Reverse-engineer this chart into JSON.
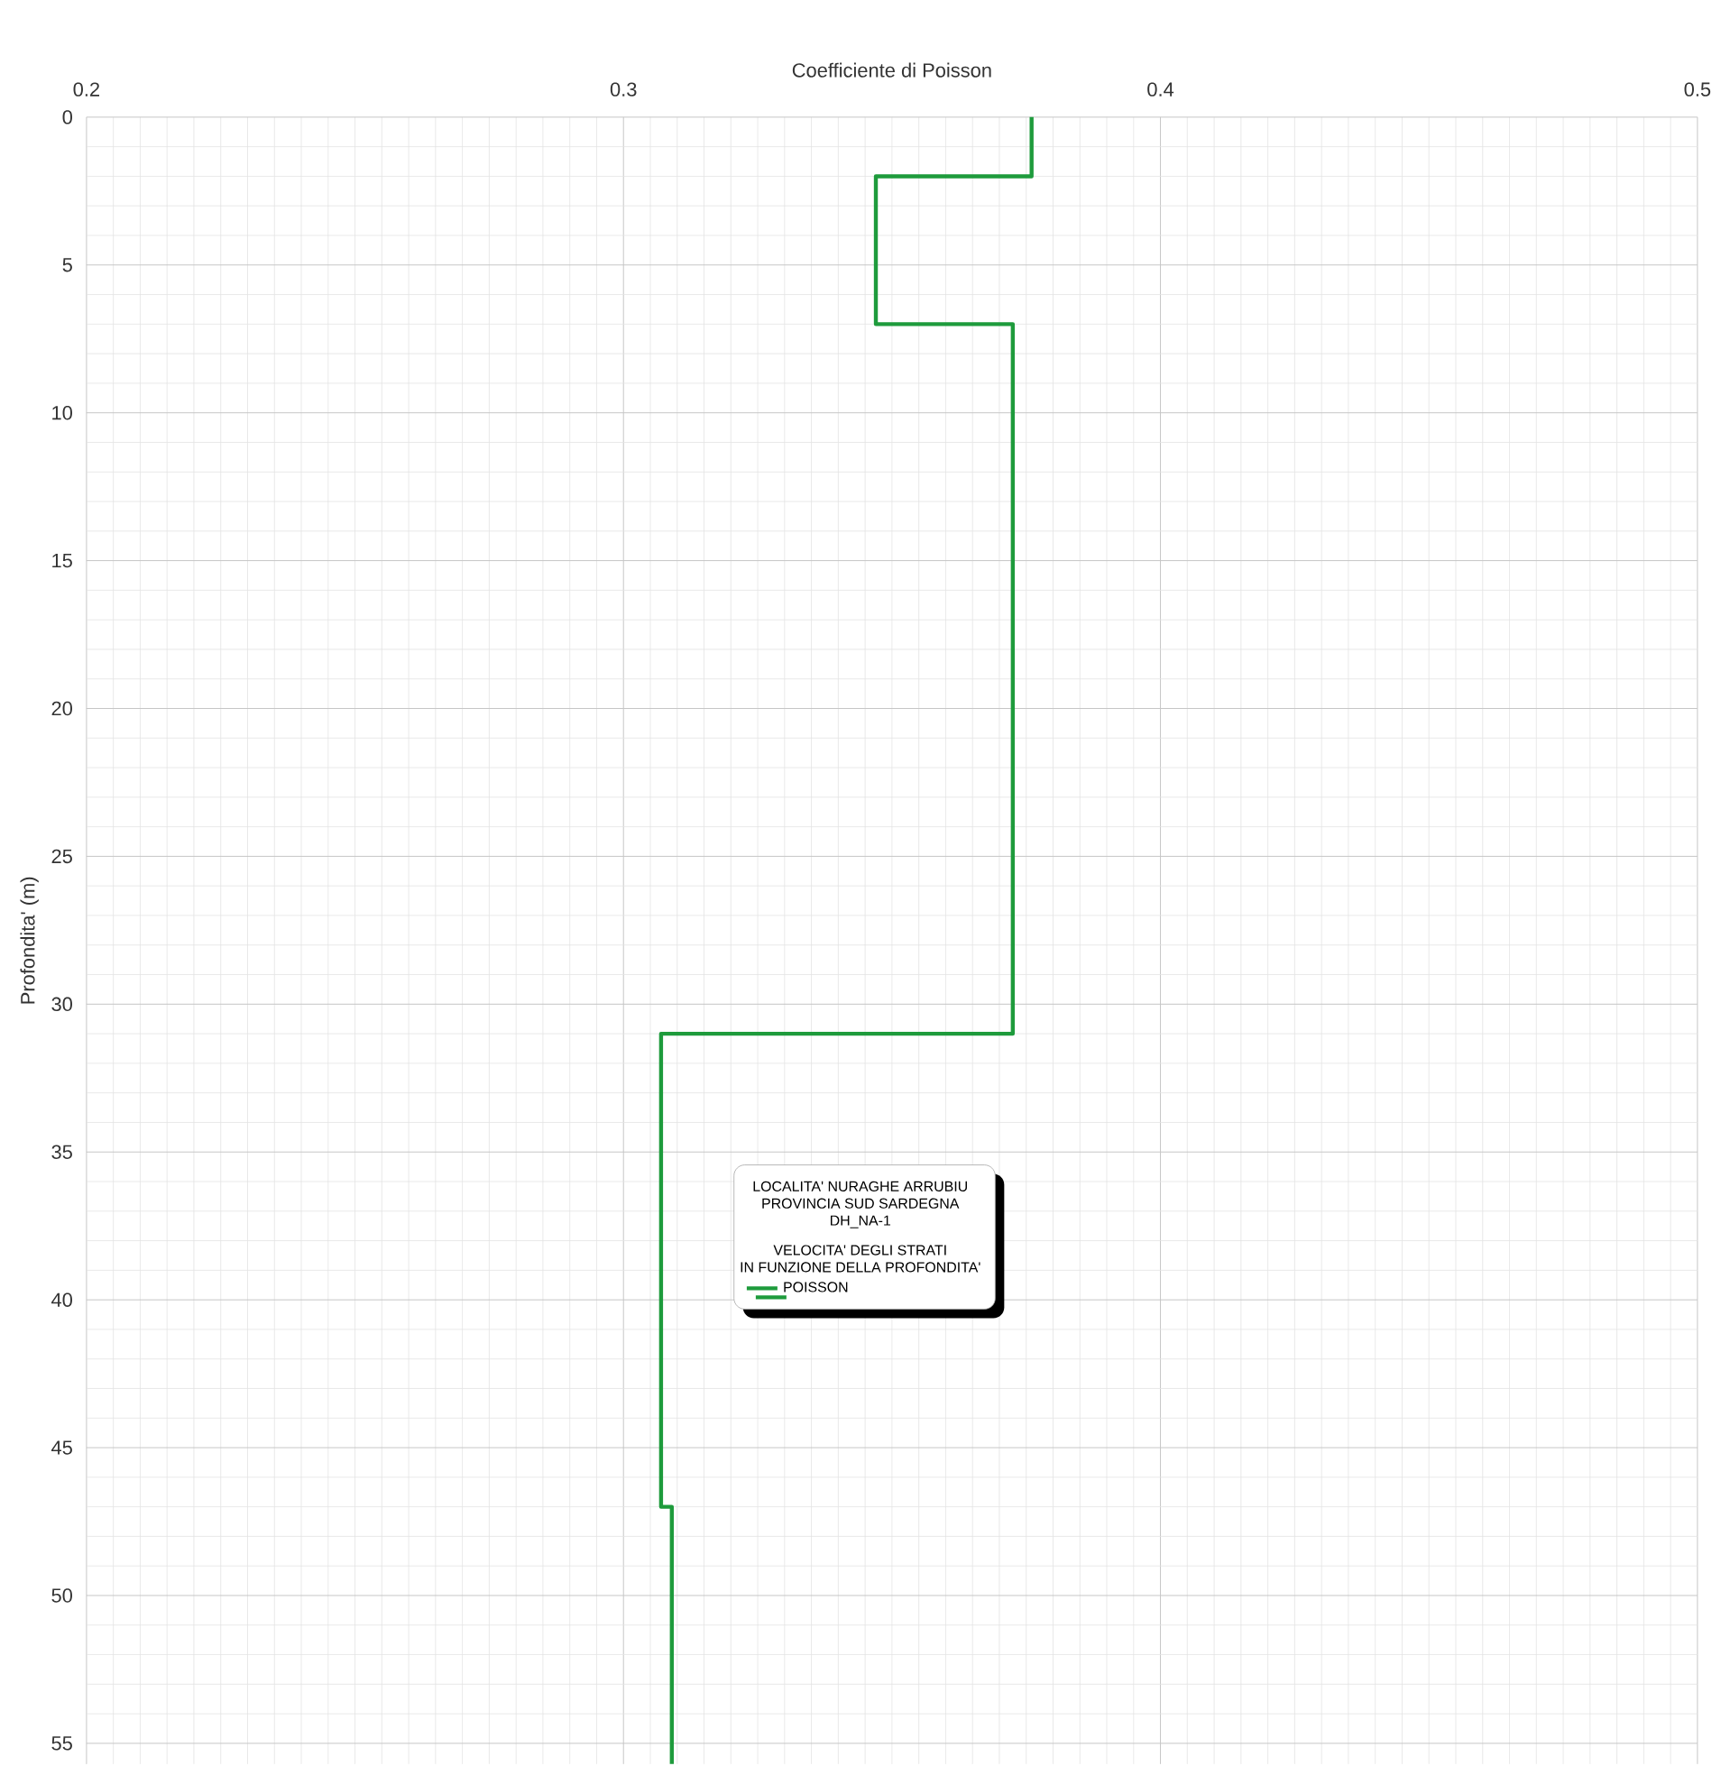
{
  "chart_data": {
    "type": "line",
    "xlabel": "Coefficiente di Poisson",
    "ylabel": "Profondita' (m)",
    "annotations": [
      "LOCALITA' NURAGHE ARRUBIU",
      "PROVINCIA SUD SARDEGNA",
      "DH_NA-1",
      "VELOCITA' DEGLI STRATI",
      "IN FUNZIONE DELLA PROFONDITA'"
    ],
    "series": [
      {
        "name": "POISSON",
        "color": "#1e9b3c",
        "x": [
          0.376,
          0.376,
          0.347,
          0.347,
          0.3725,
          0.3725,
          0.307,
          0.307,
          0.309,
          0.309
        ],
        "values": [
          0,
          2,
          2,
          7,
          7,
          31,
          31,
          47,
          47,
          55.7
        ]
      }
    ],
    "xlim": [
      0.2,
      0.5
    ],
    "xticks": [
      0.2,
      0.3,
      0.4,
      0.5
    ],
    "ylim": [
      55.7,
      0
    ],
    "yticks": [
      0,
      5,
      10,
      15,
      20,
      25,
      30,
      35,
      40,
      45,
      50,
      55
    ],
    "grid": true,
    "legend": "center",
    "marker": "none",
    "line_style": "solid"
  }
}
